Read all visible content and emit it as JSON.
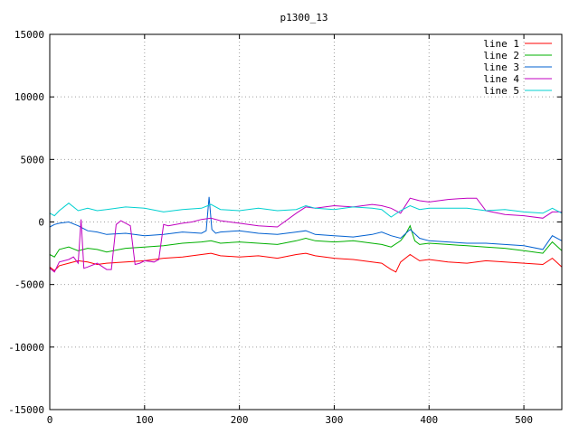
{
  "chart_data": {
    "type": "line",
    "title": "p1300_13",
    "xlabel": "",
    "ylabel": "",
    "xlim": [
      0,
      540
    ],
    "ylim": [
      -15000,
      15000
    ],
    "x_ticks": [
      0,
      100,
      200,
      300,
      400,
      500
    ],
    "y_ticks": [
      -15000,
      -10000,
      -5000,
      0,
      5000,
      10000,
      15000
    ],
    "grid": true,
    "legend_position": "top-right",
    "series": [
      {
        "name": "line 1",
        "color": "#ff0000",
        "x": [
          0,
          5,
          10,
          20,
          30,
          40,
          50,
          60,
          80,
          100,
          120,
          140,
          160,
          170,
          180,
          200,
          220,
          240,
          260,
          270,
          280,
          300,
          320,
          340,
          350,
          360,
          365,
          370,
          380,
          390,
          400,
          420,
          440,
          460,
          480,
          500,
          520,
          530,
          540
        ],
        "y": [
          -3600,
          -3900,
          -3500,
          -3300,
          -3100,
          -3200,
          -3400,
          -3300,
          -3200,
          -3100,
          -2900,
          -2800,
          -2600,
          -2500,
          -2700,
          -2800,
          -2700,
          -2900,
          -2600,
          -2500,
          -2700,
          -2900,
          -3000,
          -3200,
          -3300,
          -3800,
          -4000,
          -3200,
          -2600,
          -3100,
          -3000,
          -3200,
          -3300,
          -3100,
          -3200,
          -3300,
          -3400,
          -2900,
          -3600
        ]
      },
      {
        "name": "line 2",
        "color": "#00b000",
        "x": [
          0,
          5,
          10,
          20,
          30,
          40,
          50,
          60,
          80,
          100,
          120,
          140,
          160,
          170,
          180,
          200,
          220,
          240,
          260,
          270,
          280,
          300,
          320,
          340,
          350,
          360,
          370,
          375,
          380,
          385,
          390,
          400,
          420,
          440,
          460,
          480,
          500,
          520,
          530,
          540
        ],
        "y": [
          -2600,
          -2800,
          -2200,
          -2000,
          -2300,
          -2100,
          -2200,
          -2400,
          -2100,
          -2000,
          -1900,
          -1700,
          -1600,
          -1500,
          -1700,
          -1600,
          -1700,
          -1800,
          -1500,
          -1300,
          -1500,
          -1600,
          -1500,
          -1700,
          -1800,
          -2000,
          -1500,
          -1000,
          -300,
          -1500,
          -1800,
          -1700,
          -1800,
          -1900,
          -2000,
          -2100,
          -2300,
          -2500,
          -1600,
          -2300
        ]
      },
      {
        "name": "line 3",
        "color": "#0060d0",
        "x": [
          0,
          5,
          10,
          20,
          30,
          40,
          50,
          60,
          80,
          100,
          120,
          140,
          160,
          165,
          168,
          171,
          175,
          180,
          200,
          220,
          240,
          260,
          270,
          280,
          300,
          320,
          340,
          350,
          360,
          370,
          380,
          390,
          400,
          420,
          440,
          460,
          480,
          500,
          520,
          530,
          540
        ],
        "y": [
          -400,
          -200,
          -100,
          0,
          -300,
          -700,
          -800,
          -1000,
          -900,
          -1100,
          -1000,
          -800,
          -900,
          -700,
          2000,
          -600,
          -900,
          -800,
          -700,
          -900,
          -1000,
          -800,
          -700,
          -1000,
          -1100,
          -1200,
          -1000,
          -800,
          -1100,
          -1300,
          -600,
          -1300,
          -1500,
          -1600,
          -1700,
          -1700,
          -1800,
          -1900,
          -2200,
          -1100,
          -1500
        ]
      },
      {
        "name": "line 4",
        "color": "#c000c0",
        "x": [
          0,
          5,
          10,
          20,
          25,
          30,
          33,
          36,
          40,
          50,
          60,
          65,
          70,
          75,
          80,
          85,
          90,
          95,
          100,
          110,
          115,
          120,
          125,
          140,
          150,
          160,
          170,
          180,
          200,
          220,
          240,
          260,
          270,
          280,
          300,
          320,
          340,
          350,
          360,
          370,
          380,
          390,
          400,
          420,
          440,
          450,
          460,
          480,
          500,
          520,
          530,
          540
        ],
        "y": [
          -3700,
          -4000,
          -3200,
          -3000,
          -2800,
          -3300,
          200,
          -3700,
          -3600,
          -3300,
          -3800,
          -3800,
          -200,
          100,
          -100,
          -300,
          -3400,
          -3300,
          -3100,
          -3200,
          -3000,
          -200,
          -300,
          -100,
          0,
          200,
          300,
          100,
          -100,
          -300,
          -400,
          700,
          1200,
          1100,
          1300,
          1200,
          1400,
          1300,
          1100,
          700,
          1900,
          1700,
          1600,
          1800,
          1900,
          1900,
          900,
          600,
          500,
          300,
          800,
          800
        ]
      },
      {
        "name": "line 5",
        "color": "#00d0d0",
        "x": [
          0,
          5,
          10,
          20,
          30,
          40,
          50,
          60,
          80,
          100,
          120,
          140,
          160,
          170,
          180,
          200,
          220,
          240,
          260,
          270,
          280,
          300,
          320,
          340,
          350,
          360,
          370,
          380,
          390,
          400,
          420,
          440,
          460,
          480,
          500,
          520,
          530,
          540
        ],
        "y": [
          700,
          500,
          900,
          1500,
          900,
          1100,
          900,
          1000,
          1200,
          1100,
          800,
          1000,
          1100,
          1400,
          1000,
          900,
          1100,
          900,
          1000,
          1300,
          1100,
          1000,
          1200,
          1100,
          1000,
          400,
          900,
          1300,
          1000,
          1100,
          1100,
          1100,
          900,
          1000,
          800,
          700,
          1100,
          700
        ]
      }
    ]
  }
}
